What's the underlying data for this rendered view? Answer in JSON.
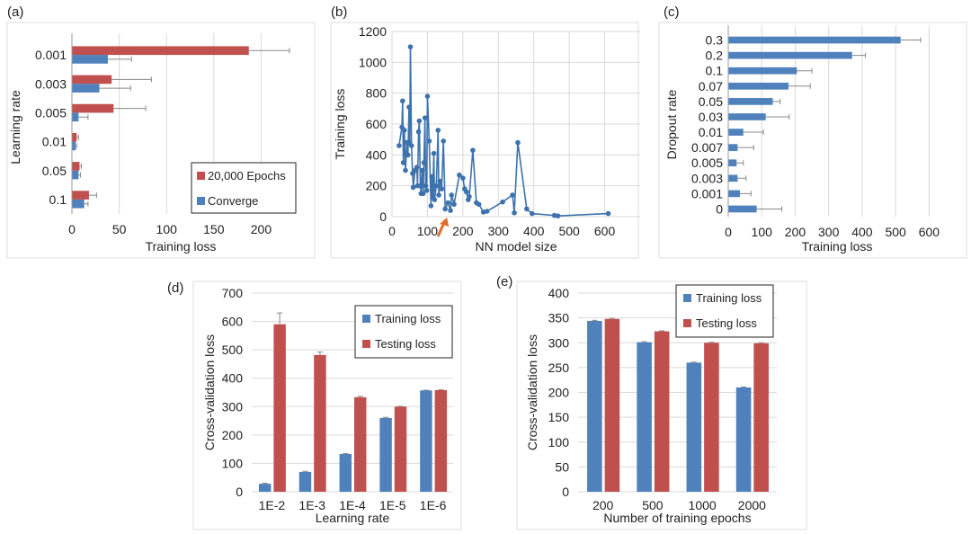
{
  "colors": {
    "red": "#c0504d",
    "blue": "#4f81bd",
    "grid": "#d9d9d9",
    "arrow": "#e46c2a",
    "line": "#3d72ad"
  },
  "chart_data": [
    {
      "panel": "(a)",
      "type": "bar",
      "orientation": "horizontal",
      "xlabel": "Training loss",
      "ylabel": "Learning rate",
      "categories": [
        "0.001",
        "0.003",
        "0.005",
        "0.01",
        "0.05",
        "0.1"
      ],
      "xlim": [
        0,
        230
      ],
      "xticks": [
        0,
        50,
        100,
        150,
        200
      ],
      "grid": true,
      "legend": "bottom-right",
      "series": [
        {
          "name": "20,000 Epochs",
          "color": "#c0504d",
          "values": [
            187,
            42,
            44,
            5,
            8,
            18
          ],
          "errors": [
            43,
            42,
            34,
            2,
            2,
            8
          ]
        },
        {
          "name": "Converge",
          "color": "#4f81bd",
          "values": [
            38,
            29,
            7,
            4,
            7,
            13
          ],
          "errors": [
            25,
            33,
            10,
            1,
            2,
            4
          ]
        }
      ]
    },
    {
      "panel": "(b)",
      "type": "line",
      "xlabel": "NN model size",
      "ylabel": "Training loss",
      "xlim": [
        0,
        700
      ],
      "ylim": [
        0,
        1200
      ],
      "xticks": [
        0,
        100,
        200,
        300,
        400,
        500,
        600
      ],
      "yticks": [
        0,
        200,
        400,
        600,
        800,
        1000,
        1200
      ],
      "grid": true,
      "annotation": "orange arrow near model size 150",
      "x": [
        20,
        28,
        30,
        32,
        35,
        38,
        42,
        45,
        48,
        50,
        52,
        55,
        58,
        60,
        65,
        70,
        72,
        75,
        77,
        80,
        82,
        85,
        88,
        90,
        93,
        95,
        98,
        100,
        105,
        110,
        112,
        115,
        118,
        120,
        125,
        130,
        132,
        135,
        140,
        145,
        150,
        158,
        165,
        168,
        175,
        190,
        200,
        205,
        210,
        215,
        218,
        228,
        238,
        245,
        258,
        268,
        312,
        340,
        345,
        355,
        380,
        395,
        458,
        468,
        610
      ],
      "y": [
        460,
        580,
        750,
        350,
        560,
        300,
        480,
        400,
        710,
        480,
        1100,
        460,
        280,
        190,
        300,
        320,
        200,
        550,
        620,
        200,
        150,
        300,
        150,
        350,
        640,
        200,
        170,
        780,
        490,
        70,
        260,
        130,
        410,
        110,
        200,
        560,
        140,
        230,
        180,
        490,
        50,
        90,
        40,
        140,
        80,
        270,
        250,
        180,
        160,
        110,
        130,
        430,
        90,
        80,
        30,
        35,
        95,
        140,
        25,
        480,
        50,
        20,
        8,
        5,
        20
      ]
    },
    {
      "panel": "(c)",
      "type": "bar",
      "orientation": "horizontal",
      "xlabel": "Training loss",
      "ylabel": "Dropout rate",
      "categories": [
        "0.3",
        "0.2",
        "0.1",
        "0.07",
        "0.05",
        "0.03",
        "0.01",
        "0.007",
        "0.005",
        "0.003",
        "0.001",
        "0"
      ],
      "xlim": [
        0,
        650
      ],
      "xticks": [
        0,
        100,
        200,
        300,
        400,
        500,
        600
      ],
      "grid": true,
      "series": [
        {
          "color": "#4f81bd",
          "values": [
            515,
            370,
            205,
            180,
            133,
            112,
            45,
            28,
            25,
            28,
            35,
            85
          ],
          "errors": [
            60,
            40,
            45,
            65,
            22,
            70,
            60,
            48,
            20,
            25,
            33,
            75
          ]
        }
      ]
    },
    {
      "panel": "(d)",
      "type": "bar",
      "xlabel": "Learning rate",
      "ylabel": "Cross-validation loss",
      "categories": [
        "1E-2",
        "1E-3",
        "1E-4",
        "1E-5",
        "1E-6"
      ],
      "ylim": [
        0,
        700
      ],
      "yticks": [
        0,
        100,
        200,
        300,
        400,
        500,
        600,
        700
      ],
      "grid": true,
      "legend": "top-right",
      "series": [
        {
          "name": "Training loss",
          "color": "#4f81bd",
          "values": [
            28,
            70,
            133,
            260,
            357
          ],
          "errors": [
            2,
            2,
            2,
            2,
            1
          ]
        },
        {
          "name": "Testing loss",
          "color": "#c0504d",
          "values": [
            590,
            482,
            333,
            300,
            358
          ],
          "errors": [
            40,
            10,
            3,
            1,
            1
          ]
        }
      ]
    },
    {
      "panel": "(e)",
      "type": "bar",
      "xlabel": "Number of training epochs",
      "ylabel": "Cross-validation loss",
      "categories": [
        "200",
        "500",
        "1000",
        "2000"
      ],
      "ylim": [
        0,
        400
      ],
      "yticks": [
        0,
        50,
        100,
        150,
        200,
        250,
        300,
        350,
        400
      ],
      "grid": true,
      "legend": "top-right",
      "series": [
        {
          "name": "Training loss",
          "color": "#4f81bd",
          "values": [
            344,
            301,
            260,
            210
          ],
          "errors": [
            1,
            1,
            1,
            1
          ]
        },
        {
          "name": "Testing loss",
          "color": "#c0504d",
          "values": [
            348,
            323,
            300,
            299
          ],
          "errors": [
            1,
            1,
            1,
            1
          ]
        }
      ]
    }
  ]
}
